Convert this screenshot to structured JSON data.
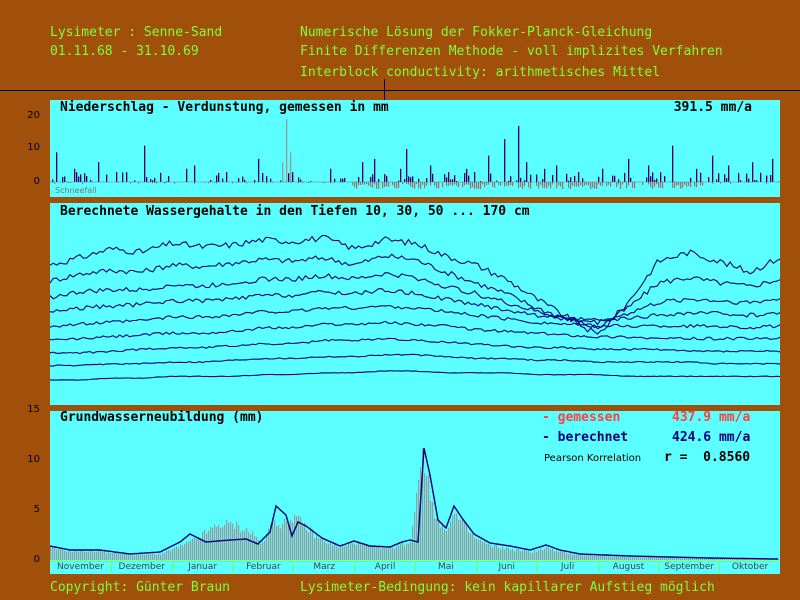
{
  "header": {
    "site": "Lysimeter : Senne-Sand",
    "period": "01.11.68 - 31.10.69",
    "line1": "Numerische Lösung der Fokker-Planck-Gleichung",
    "line2": "Finite Differenzen Methode - voll implizites Verfahren",
    "line3": "Interblock conductivity: arithmetisches Mittel"
  },
  "footer": {
    "copyright": "Copyright: Günter Braun",
    "condition": "Lysimeter-Bedingung: kein kapillarer Aufstieg möglich"
  },
  "colors": {
    "background": "#a0500a",
    "panel": "#5cffff",
    "header_text": "#7cff3c",
    "measured": "#ff4040",
    "computed": "#00007a",
    "bars_gray": "#9a9a9a"
  },
  "chart_data": [
    {
      "type": "bar",
      "title": "Niederschlag - Verdunstung, gemessen in mm",
      "total_label": "391.5 mm/a",
      "ylim": [
        -5,
        25
      ],
      "yticks": [
        "20",
        "10",
        "0"
      ],
      "annotation": "Schneefall",
      "note": "daily precipitation (positive, blue) and evaporation (negative, gray-brown) over 365 days",
      "precip_peaks": [
        {
          "day": 3,
          "value": 9
        },
        {
          "day": 12,
          "value": 4
        },
        {
          "day": 24,
          "value": 6
        },
        {
          "day": 33,
          "value": 3
        },
        {
          "day": 47,
          "value": 11
        },
        {
          "day": 68,
          "value": 4
        },
        {
          "day": 72,
          "value": 5
        },
        {
          "day": 88,
          "value": 3
        },
        {
          "day": 104,
          "value": 7
        },
        {
          "day": 121,
          "value": 3
        },
        {
          "day": 140,
          "value": 4
        },
        {
          "day": 156,
          "value": 6
        },
        {
          "day": 162,
          "value": 7
        },
        {
          "day": 175,
          "value": 4
        },
        {
          "day": 178,
          "value": 10
        },
        {
          "day": 190,
          "value": 5
        },
        {
          "day": 199,
          "value": 3
        },
        {
          "day": 208,
          "value": 4
        },
        {
          "day": 212,
          "value": 3
        },
        {
          "day": 219,
          "value": 8
        },
        {
          "day": 227,
          "value": 13
        },
        {
          "day": 234,
          "value": 17
        },
        {
          "day": 238,
          "value": 6
        },
        {
          "day": 247,
          "value": 4
        },
        {
          "day": 253,
          "value": 5
        },
        {
          "day": 264,
          "value": 3
        },
        {
          "day": 276,
          "value": 4
        },
        {
          "day": 289,
          "value": 7
        },
        {
          "day": 299,
          "value": 5
        },
        {
          "day": 311,
          "value": 11
        },
        {
          "day": 323,
          "value": 4
        },
        {
          "day": 331,
          "value": 8
        },
        {
          "day": 339,
          "value": 5
        },
        {
          "day": 351,
          "value": 6
        },
        {
          "day": 361,
          "value": 7
        }
      ]
    },
    {
      "type": "line",
      "title": "Berechnete Wassergehalte in den Tiefen 10, 30, 50 ... 170 cm",
      "series": [
        {
          "depth_cm": 10,
          "values": [
            0.74,
            0.78,
            0.83,
            0.81,
            0.86,
            0.84,
            0.85,
            0.88,
            0.87,
            0.89,
            0.83,
            0.88,
            0.86,
            0.79,
            0.74,
            0.66,
            0.55,
            0.45,
            0.35,
            0.53,
            0.76,
            0.81,
            0.76,
            0.7,
            0.78
          ]
        },
        {
          "depth_cm": 30,
          "values": [
            0.65,
            0.69,
            0.71,
            0.7,
            0.74,
            0.73,
            0.75,
            0.77,
            0.76,
            0.78,
            0.74,
            0.79,
            0.77,
            0.7,
            0.64,
            0.58,
            0.5,
            0.44,
            0.39,
            0.5,
            0.64,
            0.67,
            0.64,
            0.62,
            0.66
          ]
        },
        {
          "depth_cm": 50,
          "values": [
            0.56,
            0.59,
            0.6,
            0.6,
            0.63,
            0.62,
            0.64,
            0.66,
            0.66,
            0.68,
            0.66,
            0.69,
            0.67,
            0.62,
            0.58,
            0.53,
            0.48,
            0.44,
            0.42,
            0.47,
            0.53,
            0.55,
            0.54,
            0.53,
            0.55
          ]
        },
        {
          "depth_cm": 70,
          "values": [
            0.48,
            0.5,
            0.51,
            0.52,
            0.54,
            0.54,
            0.55,
            0.57,
            0.57,
            0.59,
            0.58,
            0.6,
            0.58,
            0.55,
            0.52,
            0.49,
            0.46,
            0.44,
            0.43,
            0.44,
            0.46,
            0.47,
            0.47,
            0.46,
            0.47
          ]
        },
        {
          "depth_cm": 90,
          "values": [
            0.4,
            0.41,
            0.42,
            0.43,
            0.45,
            0.45,
            0.46,
            0.48,
            0.48,
            0.5,
            0.5,
            0.51,
            0.5,
            0.48,
            0.46,
            0.44,
            0.42,
            0.41,
            0.4,
            0.4,
            0.4,
            0.4,
            0.4,
            0.39,
            0.4
          ]
        },
        {
          "depth_cm": 110,
          "values": [
            0.32,
            0.33,
            0.34,
            0.35,
            0.36,
            0.36,
            0.37,
            0.39,
            0.39,
            0.41,
            0.41,
            0.42,
            0.41,
            0.4,
            0.38,
            0.37,
            0.36,
            0.35,
            0.34,
            0.34,
            0.33,
            0.33,
            0.33,
            0.33,
            0.33
          ]
        },
        {
          "depth_cm": 130,
          "values": [
            0.25,
            0.25,
            0.26,
            0.27,
            0.28,
            0.28,
            0.29,
            0.3,
            0.3,
            0.32,
            0.32,
            0.33,
            0.32,
            0.31,
            0.3,
            0.29,
            0.28,
            0.28,
            0.27,
            0.27,
            0.27,
            0.26,
            0.26,
            0.26,
            0.26
          ]
        },
        {
          "depth_cm": 150,
          "values": [
            0.18,
            0.18,
            0.19,
            0.19,
            0.2,
            0.2,
            0.21,
            0.22,
            0.22,
            0.23,
            0.23,
            0.24,
            0.24,
            0.23,
            0.22,
            0.22,
            0.21,
            0.21,
            0.2,
            0.2,
            0.2,
            0.2,
            0.19,
            0.19,
            0.19
          ]
        },
        {
          "depth_cm": 170,
          "values": [
            0.1,
            0.1,
            0.11,
            0.11,
            0.12,
            0.12,
            0.12,
            0.13,
            0.13,
            0.14,
            0.14,
            0.15,
            0.15,
            0.14,
            0.14,
            0.14,
            0.13,
            0.13,
            0.13,
            0.12,
            0.12,
            0.12,
            0.12,
            0.12,
            0.12
          ]
        }
      ]
    },
    {
      "type": "area",
      "title": "Grundwasserneubildung (mm)",
      "ylim": [
        0,
        15
      ],
      "yticks": [
        "15",
        "10",
        "5",
        "0"
      ],
      "categories": [
        "November",
        "Dezember",
        "Januar",
        "Februar",
        "Marz",
        "April",
        "Mai",
        "Juni",
        "Juli",
        "August",
        "September",
        "Oktober"
      ],
      "legend": [
        {
          "label": "- gemessen",
          "value": "437.9 mm/a",
          "color": "#ff4040"
        },
        {
          "label": "- berechnet",
          "value": "424.6 mm/a",
          "color": "#00007a"
        }
      ],
      "correlation_label": "Pearson Korrelation",
      "correlation_value": "r =  0.8560",
      "computed_keypoints": [
        [
          0,
          1.4
        ],
        [
          10,
          1.0
        ],
        [
          25,
          1.0
        ],
        [
          40,
          0.6
        ],
        [
          55,
          0.8
        ],
        [
          65,
          1.8
        ],
        [
          70,
          2.6
        ],
        [
          78,
          1.8
        ],
        [
          90,
          2.0
        ],
        [
          98,
          2.1
        ],
        [
          104,
          1.6
        ],
        [
          110,
          2.8
        ],
        [
          113,
          5.4
        ],
        [
          118,
          4.5
        ],
        [
          121,
          2.4
        ],
        [
          124,
          3.8
        ],
        [
          128,
          3.4
        ],
        [
          136,
          2.2
        ],
        [
          145,
          1.4
        ],
        [
          152,
          1.9
        ],
        [
          160,
          1.4
        ],
        [
          170,
          1.3
        ],
        [
          176,
          1.8
        ],
        [
          180,
          2.0
        ],
        [
          184,
          1.8
        ],
        [
          187,
          11.2
        ],
        [
          190,
          8.5
        ],
        [
          194,
          4.0
        ],
        [
          198,
          3.2
        ],
        [
          202,
          5.4
        ],
        [
          206,
          4.2
        ],
        [
          212,
          2.6
        ],
        [
          220,
          1.7
        ],
        [
          230,
          1.4
        ],
        [
          240,
          1.0
        ],
        [
          248,
          1.5
        ],
        [
          255,
          1.0
        ],
        [
          265,
          0.6
        ],
        [
          290,
          0.4
        ],
        [
          330,
          0.2
        ],
        [
          364,
          0.1
        ]
      ],
      "measured_keypoints": [
        [
          0,
          1.2
        ],
        [
          10,
          0.9
        ],
        [
          25,
          0.9
        ],
        [
          40,
          0.5
        ],
        [
          55,
          0.6
        ],
        [
          65,
          1.4
        ],
        [
          70,
          1.8
        ],
        [
          78,
          2.8
        ],
        [
          85,
          3.6
        ],
        [
          92,
          3.5
        ],
        [
          100,
          2.8
        ],
        [
          106,
          1.6
        ],
        [
          112,
          4.2
        ],
        [
          116,
          3.4
        ],
        [
          121,
          4.4
        ],
        [
          126,
          3.6
        ],
        [
          134,
          2.2
        ],
        [
          145,
          1.2
        ],
        [
          152,
          1.8
        ],
        [
          160,
          1.3
        ],
        [
          170,
          1.2
        ],
        [
          176,
          1.6
        ],
        [
          180,
          1.8
        ],
        [
          185,
          10.4
        ],
        [
          189,
          8.0
        ],
        [
          193,
          3.8
        ],
        [
          197,
          3.0
        ],
        [
          202,
          4.6
        ],
        [
          206,
          3.6
        ],
        [
          212,
          2.2
        ],
        [
          220,
          1.4
        ],
        [
          230,
          1.1
        ],
        [
          240,
          0.8
        ],
        [
          248,
          1.2
        ],
        [
          255,
          0.8
        ],
        [
          265,
          0.5
        ],
        [
          290,
          0.3
        ],
        [
          330,
          0.2
        ],
        [
          364,
          0.1
        ]
      ]
    }
  ]
}
